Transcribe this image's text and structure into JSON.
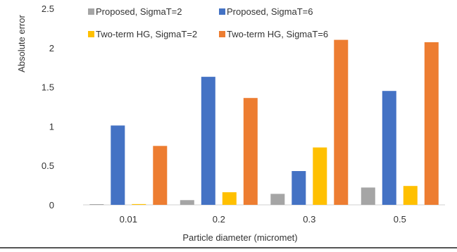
{
  "chart_data": {
    "type": "bar",
    "title": "",
    "xlabel": "Particle diameter (micromet)",
    "ylabel": "Absolute error",
    "categories": [
      "0.01",
      "0.2",
      "0.3",
      "0.5"
    ],
    "ylim": [
      0,
      2.5
    ],
    "yticks": [
      "0",
      "0.5",
      "1",
      "1.5",
      "2",
      "2.5"
    ],
    "grid": false,
    "legend_placement": "top",
    "series": [
      {
        "name": "Proposed, SigmaT=2",
        "color": "#A5A5A5",
        "values": [
          0.005,
          0.06,
          0.14,
          0.22
        ]
      },
      {
        "name": "Proposed, SigmaT=6",
        "color": "#4472C4",
        "values": [
          1.01,
          1.63,
          0.43,
          1.45
        ]
      },
      {
        "name": "Two-term HG, SigmaT=2",
        "color": "#FFC000",
        "values": [
          0.01,
          0.16,
          0.73,
          0.24
        ]
      },
      {
        "name": "Two-term HG, SigmaT=6",
        "color": "#ED7D31",
        "values": [
          0.75,
          1.36,
          2.1,
          2.07
        ]
      }
    ]
  }
}
